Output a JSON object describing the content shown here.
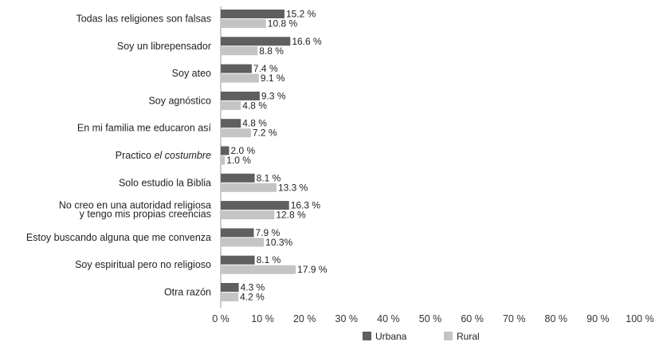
{
  "chart_data": {
    "type": "bar",
    "orientation": "horizontal",
    "categories": [
      [
        "Todas las religiones son falsas"
      ],
      [
        "Soy un librepensador"
      ],
      [
        "Soy ateo"
      ],
      [
        "Soy agnóstico"
      ],
      [
        "En mi familia me educaron así"
      ],
      [
        "Practico ",
        "el costumbre"
      ],
      [
        "Solo estudio la Biblia"
      ],
      [
        "No creo en una autoridad religiosa",
        "y tengo mis propias creencias"
      ],
      [
        "Estoy buscando alguna que me convenza"
      ],
      [
        "Soy espiritual pero no religioso"
      ],
      [
        "Otra razón"
      ]
    ],
    "series": [
      {
        "name": "Urbana",
        "color": "#5f5f5f",
        "values": [
          15.2,
          16.6,
          7.4,
          9.3,
          4.8,
          2.0,
          8.1,
          16.3,
          7.9,
          8.1,
          4.3
        ],
        "labels": [
          "15.2 %",
          "16.6 %",
          "7.4 %",
          "9.3 %",
          "4.8 %",
          "2.0 %",
          "8.1 %",
          "16.3 %",
          "7.9 %",
          "8.1 %",
          "4.3 %"
        ]
      },
      {
        "name": "Rural",
        "color": "#c4c4c4",
        "values": [
          10.8,
          8.8,
          9.1,
          4.8,
          7.2,
          1.0,
          13.3,
          12.8,
          10.3,
          17.9,
          4.2
        ],
        "labels": [
          "10.8 %",
          "8.8 %",
          "9.1 %",
          "4.8 %",
          "7.2 %",
          "1.0 %",
          "13.3 %",
          "12.8 %",
          "10.3%",
          "17.9 %",
          "4.2 %"
        ]
      }
    ],
    "xlim": [
      0,
      100
    ],
    "xticks": [
      "0 %",
      "10 %",
      "20 %",
      "30 %",
      "40 %",
      "50 %",
      "60 %",
      "70 %",
      "80 %",
      "90 %",
      "100 %"
    ],
    "grid": false,
    "legend": "bottom-center"
  }
}
